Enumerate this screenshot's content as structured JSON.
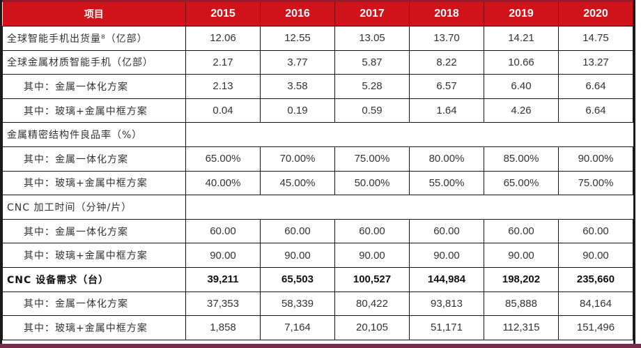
{
  "table": {
    "header": [
      "项目",
      "2015",
      "2016",
      "2017",
      "2018",
      "2019",
      "2020"
    ],
    "rows": [
      {
        "label": "全球智能手机出货量⁸（亿部）",
        "values": [
          "12.06",
          "12.55",
          "13.05",
          "13.70",
          "14.21",
          "14.75"
        ],
        "sub": false,
        "bold": false
      },
      {
        "label": "全球金属材质智能手机（亿部）",
        "values": [
          "2.17",
          "3.77",
          "5.87",
          "8.22",
          "10.66",
          "13.27"
        ],
        "sub": false,
        "bold": false
      },
      {
        "label": "其中：金属一体化方案",
        "values": [
          "2.13",
          "3.58",
          "5.28",
          "6.57",
          "6.40",
          "6.64"
        ],
        "sub": true,
        "bold": false
      },
      {
        "label": "其中：玻璃+金属中框方案",
        "values": [
          "0.04",
          "0.19",
          "0.59",
          "1.64",
          "4.26",
          "6.64"
        ],
        "sub": true,
        "bold": false
      },
      {
        "label": "金属精密结构件良品率（%）",
        "values": [],
        "sub": false,
        "bold": false
      },
      {
        "label": "其中：金属一体化方案",
        "values": [
          "65.00%",
          "70.00%",
          "75.00%",
          "80.00%",
          "85.00%",
          "90.00%"
        ],
        "sub": true,
        "bold": false
      },
      {
        "label": "其中：玻璃+金属中框方案",
        "values": [
          "40.00%",
          "45.00%",
          "50.00%",
          "55.00%",
          "65.00%",
          "75.00%"
        ],
        "sub": true,
        "bold": false
      },
      {
        "label": "CNC 加工时间（分钟/片）",
        "values": [],
        "sub": false,
        "bold": false
      },
      {
        "label": "其中：金属一体化方案",
        "values": [
          "60.00",
          "60.00",
          "60.00",
          "60.00",
          "60.00",
          "60.00"
        ],
        "sub": true,
        "bold": false
      },
      {
        "label": "其中：玻璃+金属中框方案",
        "values": [
          "90.00",
          "90.00",
          "90.00",
          "90.00",
          "90.00",
          "90.00"
        ],
        "sub": true,
        "bold": false
      },
      {
        "label": "CNC 设备需求（台）",
        "values": [
          "39,211",
          "65,503",
          "100,527",
          "144,984",
          "198,202",
          "235,660"
        ],
        "sub": false,
        "bold": true
      },
      {
        "label": "其中：金属一体化方案",
        "values": [
          "37,353",
          "58,339",
          "80,422",
          "93,813",
          "85,888",
          "84,164"
        ],
        "sub": true,
        "bold": false
      },
      {
        "label": "其中：玻璃+金属中框方案",
        "values": [
          "1,858",
          "7,164",
          "20,105",
          "51,171",
          "112,315",
          "151,496"
        ],
        "sub": true,
        "bold": false
      }
    ]
  },
  "colors": {
    "header_bg": "#d0121b",
    "header_text": "#ffffff",
    "bottom_bar": "#7a2a4a"
  }
}
